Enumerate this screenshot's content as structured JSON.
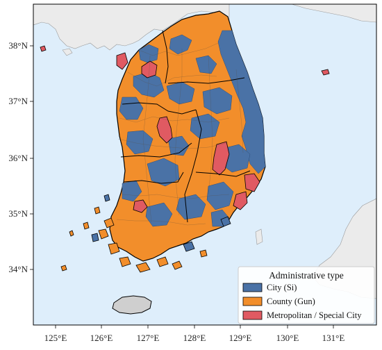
{
  "map": {
    "colors": {
      "sea": "#deeefb",
      "land_other": "#ebebeb",
      "city": "#4a72a6",
      "county": "#f28e2b",
      "metro": "#e05a62",
      "border": "#000000"
    },
    "lon_labels": [
      "125°E",
      "126°E",
      "127°E",
      "128°E",
      "129°E",
      "130°E",
      "131°E"
    ],
    "lat_labels": [
      "38°N",
      "37°N",
      "36°N",
      "35°N",
      "34°N"
    ],
    "legend": {
      "title": "Administrative type",
      "placement": "bottom-right",
      "items": [
        {
          "label": "City (Si)",
          "color": "#4a72a6"
        },
        {
          "label": "County (Gun)",
          "color": "#f28e2b"
        },
        {
          "label": "Metropolitan / Special City",
          "color": "#e05a62"
        }
      ]
    }
  }
}
